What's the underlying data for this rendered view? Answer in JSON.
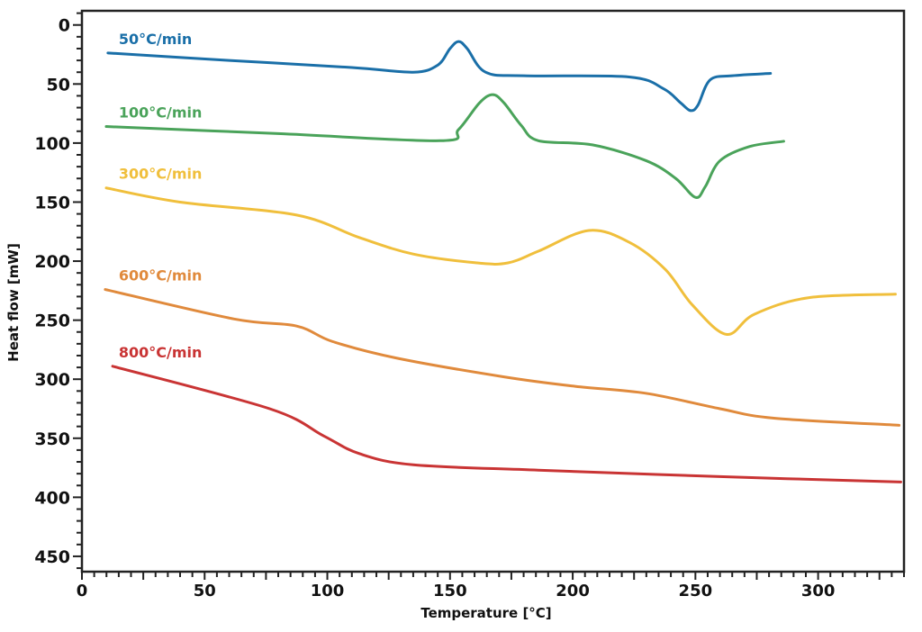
{
  "chart_data": {
    "type": "line",
    "title": "",
    "xlabel": "Temperature [°C]",
    "ylabel": "Heat flow [mW]",
    "xlim": [
      0,
      335
    ],
    "ylim": [
      -12,
      463
    ],
    "y_inverted": true,
    "grid": false,
    "legend": "inline labels at left of each curve",
    "x_ticks": [
      0,
      50,
      100,
      150,
      200,
      250,
      300
    ],
    "y_ticks": [
      0,
      50,
      100,
      150,
      200,
      250,
      300,
      350,
      400,
      450
    ],
    "series": [
      {
        "name": "50°C/min",
        "color": "#1a6fa8",
        "x": [
          10.6,
          60,
          110,
          135,
          145,
          150,
          153.5,
          157,
          164.5,
          180,
          223,
          237,
          244,
          248,
          251,
          256,
          265,
          280.6
        ],
        "y": [
          23.7,
          30,
          36,
          40,
          34,
          20,
          14,
          20,
          40,
          43,
          44,
          54,
          66,
          72.5,
          68,
          46.5,
          43,
          41
        ]
      },
      {
        "name": "100°C/min",
        "color": "#4aa35a",
        "x": [
          9.9,
          80,
          146,
          153.5,
          162,
          167.4,
          172,
          179,
          186,
          208,
          230,
          242,
          250,
          254,
          260,
          272,
          286
        ],
        "y": [
          86,
          92,
          98,
          88.5,
          66,
          59,
          66,
          85,
          98,
          101.5,
          115,
          130,
          146,
          137,
          115,
          103,
          98.5
        ]
      },
      {
        "name": "300°C/min",
        "color": "#f0bf3c",
        "x": [
          9.9,
          40,
          87.5,
          113,
          135,
          161,
          173.6,
          186,
          206.6,
          223,
          237.7,
          248.7,
          262.6,
          274,
          296,
          331.5
        ],
        "y": [
          138,
          150,
          161,
          180,
          194,
          201.5,
          201.5,
          191.6,
          174,
          184,
          207,
          237,
          262,
          245,
          231,
          228
        ]
      },
      {
        "name": "600°C/min",
        "color": "#e08a3c",
        "x": [
          9.5,
          62,
          87.5,
          102,
          128,
          172,
          201,
          230,
          260,
          282,
          333
        ],
        "y": [
          224,
          249,
          255,
          268,
          282,
          298,
          306,
          312,
          325,
          333,
          339
        ]
      },
      {
        "name": "800°C/min",
        "color": "#c93434",
        "x": [
          12.5,
          76.5,
          98.5,
          113,
          135,
          186,
          260,
          333.7
        ],
        "y": [
          289,
          325,
          348,
          363,
          372.5,
          377,
          382.5,
          387
        ]
      }
    ]
  }
}
